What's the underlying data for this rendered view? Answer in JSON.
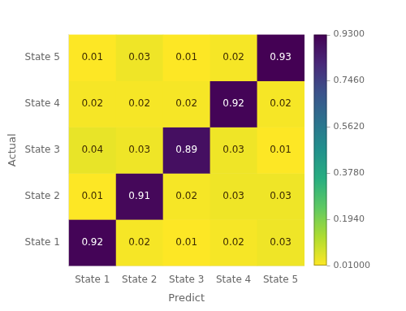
{
  "chart_data": {
    "type": "heatmap",
    "xlabel": "Predict",
    "ylabel": "Actual",
    "categories": [
      "State 1",
      "State 2",
      "State 3",
      "State 4",
      "State 5"
    ],
    "matrix": [
      [
        0.92,
        0.02,
        0.01,
        0.02,
        0.03
      ],
      [
        0.01,
        0.91,
        0.02,
        0.03,
        0.03
      ],
      [
        0.04,
        0.03,
        0.89,
        0.03,
        0.01
      ],
      [
        0.02,
        0.02,
        0.02,
        0.92,
        0.02
      ],
      [
        0.01,
        0.03,
        0.01,
        0.02,
        0.93
      ]
    ],
    "data_labels": true,
    "colorbar": {
      "range": [
        0.01,
        0.93
      ],
      "ticks": [
        {
          "value": 0.93,
          "label": "0.9300"
        },
        {
          "value": 0.746,
          "label": "0.7460"
        },
        {
          "value": 0.562,
          "label": "0.5620"
        },
        {
          "value": 0.378,
          "label": "0.3780"
        },
        {
          "value": 0.194,
          "label": "0.1940"
        },
        {
          "value": 0.01,
          "label": "0.01000"
        }
      ]
    }
  }
}
